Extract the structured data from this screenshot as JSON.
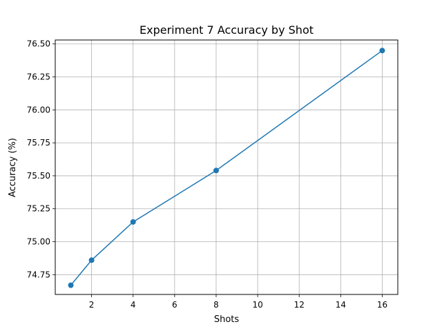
{
  "chart_data": {
    "type": "line",
    "title": "Experiment 7 Accuracy by Shot",
    "xlabel": "Shots",
    "ylabel": "Accuracy (%)",
    "x": [
      1,
      2,
      4,
      8,
      16
    ],
    "series": [
      {
        "values": [
          74.67,
          74.86,
          75.15,
          75.54,
          76.45
        ]
      }
    ],
    "xlim": [
      0.25,
      16.75
    ],
    "ylim": [
      74.6,
      76.53
    ],
    "xticks": [
      2,
      4,
      6,
      8,
      10,
      12,
      14,
      16
    ],
    "xtick_labels": [
      "2",
      "4",
      "6",
      "8",
      "10",
      "12",
      "14",
      "16"
    ],
    "yticks": [
      74.75,
      75.0,
      75.25,
      75.5,
      75.75,
      76.0,
      76.25,
      76.5
    ],
    "ytick_labels": [
      "74.75",
      "75.00",
      "75.25",
      "75.50",
      "75.75",
      "76.00",
      "76.25",
      "76.50"
    ],
    "grid": true,
    "marker": "circle",
    "colors": {
      "line": "#1f77b4",
      "grid": "#b0b0b0",
      "axes": "#000000"
    }
  }
}
